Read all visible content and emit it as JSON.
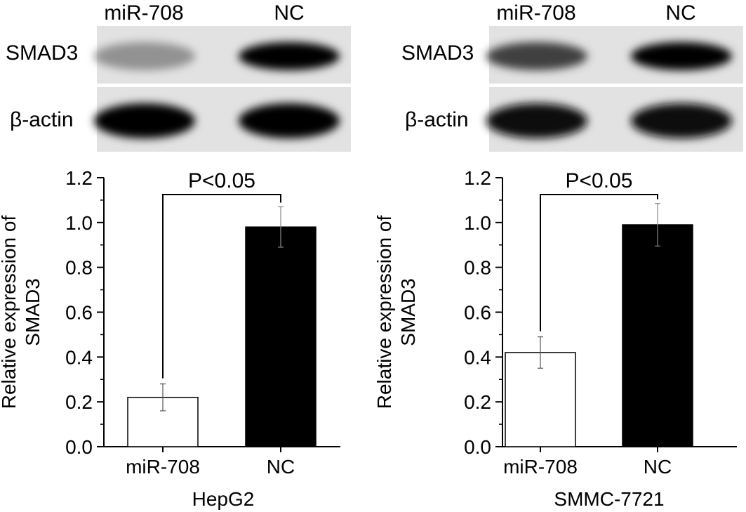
{
  "blots": [
    {
      "lanes": [
        "miR-708",
        "NC"
      ],
      "rows": [
        {
          "label": "SMAD3",
          "band_intensity": [
            0.35,
            1.0
          ]
        },
        {
          "label": "β-actin",
          "band_intensity": [
            1.0,
            1.0
          ]
        }
      ]
    },
    {
      "lanes": [
        "miR-708",
        "NC"
      ],
      "rows": [
        {
          "label": "SMAD3",
          "band_intensity": [
            0.72,
            1.0
          ]
        },
        {
          "label": "β-actin",
          "band_intensity": [
            0.95,
            0.95
          ]
        }
      ]
    }
  ],
  "chart_data": [
    {
      "type": "bar",
      "categories": [
        "miR-708",
        "NC"
      ],
      "values": [
        0.22,
        0.98
      ],
      "errors": [
        0.06,
        0.09
      ],
      "bar_colors": [
        "#ffffff",
        "#000000"
      ],
      "xlabel": "HepG2",
      "ylabel": "Relative expression of SMAD3",
      "ylim": [
        0,
        1.2
      ],
      "yticks": [
        "0.0",
        "0.2",
        "0.4",
        "0.6",
        "0.8",
        "1.0",
        "1.2"
      ],
      "annotation": "P<0.05",
      "grid": false
    },
    {
      "type": "bar",
      "categories": [
        "miR-708",
        "NC"
      ],
      "values": [
        0.42,
        0.99
      ],
      "errors": [
        0.07,
        0.095
      ],
      "bar_colors": [
        "#ffffff",
        "#000000"
      ],
      "xlabel": "SMMC-7721",
      "ylabel": "Relative expression of SMAD3",
      "ylim": [
        0,
        1.2
      ],
      "yticks": [
        "0.0",
        "0.2",
        "0.4",
        "0.6",
        "0.8",
        "1.0",
        "1.2"
      ],
      "annotation": "P<0.05",
      "grid": false
    }
  ]
}
